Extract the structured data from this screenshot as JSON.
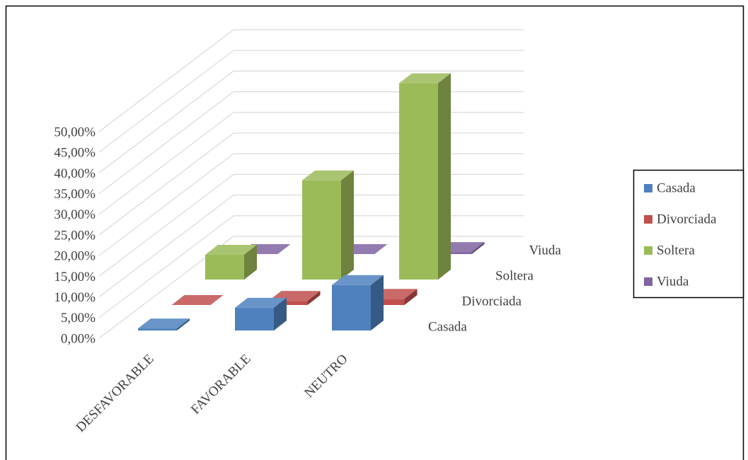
{
  "chart_data": {
    "type": "bar3d",
    "categories": [
      "DESFAVORABLE",
      "FAVORABLE",
      "NEUTRO"
    ],
    "series": [
      {
        "name": "Casada",
        "color": "#4f81bd",
        "values": [
          0.5,
          5.5,
          11
        ]
      },
      {
        "name": "Divorciada",
        "color": "#c0504d",
        "values": [
          0,
          1,
          1.5
        ]
      },
      {
        "name": "Soltera",
        "color": "#9bbb59",
        "values": [
          6,
          24,
          47.5
        ]
      },
      {
        "name": "Viuda",
        "color": "#8064a2",
        "values": [
          0,
          0,
          0.5
        ]
      }
    ],
    "ylim": [
      0,
      50
    ],
    "yticks": [
      {
        "value": 0,
        "label": "0,00%"
      },
      {
        "value": 5,
        "label": "5,00%"
      },
      {
        "value": 10,
        "label": "10,00%"
      },
      {
        "value": 15,
        "label": "15,00%"
      },
      {
        "value": 20,
        "label": "20,00%"
      },
      {
        "value": 25,
        "label": "25,00%"
      },
      {
        "value": 30,
        "label": "30,00%"
      },
      {
        "value": 35,
        "label": "35,00%"
      },
      {
        "value": 40,
        "label": "40,00%"
      },
      {
        "value": 45,
        "label": "45,00%"
      },
      {
        "value": 50,
        "label": "50,00%"
      }
    ],
    "grid": true,
    "legend": "right"
  }
}
